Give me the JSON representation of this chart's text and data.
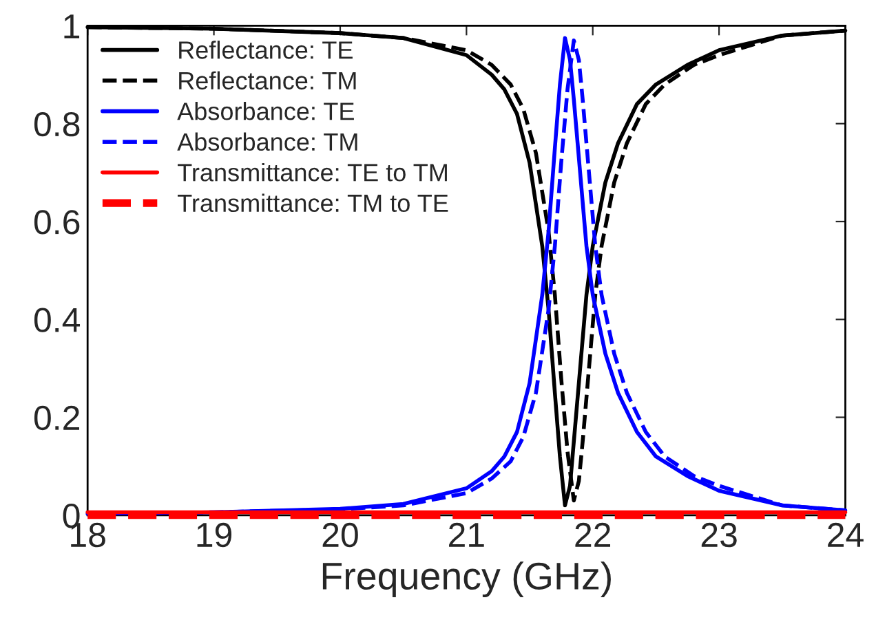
{
  "chart_data": {
    "type": "line",
    "xlabel": "Frequency (GHz)",
    "x": [
      18,
      19,
      20,
      20.5,
      21,
      21.2,
      21.3,
      21.4,
      21.5,
      21.6,
      21.65,
      21.7,
      21.74,
      21.78,
      21.82,
      21.85,
      21.9,
      21.95,
      22.0,
      22.1,
      22.2,
      22.35,
      22.5,
      22.75,
      23,
      23.5,
      24
    ],
    "series": [
      {
        "name": "Reflectance: TE",
        "color": "#000000",
        "line_style": "solid",
        "values": [
          0.997,
          0.994,
          0.985,
          0.975,
          0.94,
          0.9,
          0.87,
          0.82,
          0.72,
          0.55,
          0.42,
          0.25,
          0.12,
          0.02,
          0.06,
          0.15,
          0.3,
          0.45,
          0.55,
          0.68,
          0.76,
          0.84,
          0.88,
          0.92,
          0.95,
          0.98,
          0.99
        ]
      },
      {
        "name": "Reflectance: TM",
        "color": "#000000",
        "line_style": "dashed",
        "x": [
          18,
          19,
          20,
          20.5,
          21,
          21.2,
          21.35,
          21.45,
          21.55,
          21.65,
          21.7,
          21.75,
          21.8,
          21.85,
          21.89,
          21.92,
          21.97,
          22.02,
          22.07,
          22.17,
          22.27,
          22.42,
          22.57,
          22.8,
          23,
          23.5,
          24
        ],
        "values": [
          0.997,
          0.994,
          0.985,
          0.975,
          0.95,
          0.92,
          0.88,
          0.83,
          0.74,
          0.58,
          0.45,
          0.28,
          0.13,
          0.03,
          0.07,
          0.15,
          0.3,
          0.45,
          0.55,
          0.68,
          0.76,
          0.84,
          0.88,
          0.92,
          0.94,
          0.98,
          0.99
        ]
      },
      {
        "name": "Absorbance: TE",
        "color": "#0000ff",
        "line_style": "solid",
        "values": [
          0.003,
          0.006,
          0.013,
          0.023,
          0.055,
          0.09,
          0.12,
          0.17,
          0.27,
          0.45,
          0.58,
          0.75,
          0.88,
          0.975,
          0.93,
          0.85,
          0.7,
          0.55,
          0.45,
          0.33,
          0.25,
          0.17,
          0.12,
          0.08,
          0.05,
          0.02,
          0.01
        ]
      },
      {
        "name": "Absorbance: TM",
        "color": "#0000ff",
        "line_style": "dashed",
        "x": [
          18,
          19,
          20,
          20.5,
          21,
          21.2,
          21.35,
          21.45,
          21.55,
          21.65,
          21.7,
          21.75,
          21.8,
          21.85,
          21.89,
          21.92,
          21.97,
          22.02,
          22.07,
          22.17,
          22.27,
          22.42,
          22.57,
          22.8,
          23,
          23.5,
          24
        ],
        "values": [
          0.003,
          0.006,
          0.012,
          0.02,
          0.045,
          0.075,
          0.11,
          0.16,
          0.25,
          0.42,
          0.55,
          0.72,
          0.87,
          0.97,
          0.93,
          0.85,
          0.7,
          0.55,
          0.45,
          0.33,
          0.25,
          0.17,
          0.12,
          0.08,
          0.06,
          0.02,
          0.01
        ]
      },
      {
        "name": "Transmittance: TE to TM",
        "color": "#ff0000",
        "line_style": "solid",
        "values": [
          0.006,
          0.006,
          0.006,
          0.006,
          0.006,
          0.006,
          0.006,
          0.006,
          0.006,
          0.006,
          0.006,
          0.006,
          0.006,
          0.006,
          0.006,
          0.006,
          0.006,
          0.006,
          0.006,
          0.006,
          0.006,
          0.006,
          0.006,
          0.006,
          0.006,
          0.006,
          0.006
        ]
      },
      {
        "name": "Transmittance: TM to TE",
        "color": "#ff0000",
        "line_style": "dashed",
        "values": [
          0,
          0,
          0,
          0,
          0,
          0,
          0,
          0,
          0,
          0,
          0,
          0,
          0,
          0,
          0,
          0,
          0,
          0,
          0,
          0,
          0,
          0,
          0,
          0,
          0,
          0,
          0
        ]
      }
    ],
    "xlim": [
      18,
      24
    ],
    "xticks": [
      18,
      19,
      20,
      21,
      22,
      23,
      24
    ],
    "ylim": [
      0,
      1
    ],
    "yticks": [
      0,
      0.2,
      0.4,
      0.6,
      0.8,
      1
    ],
    "legend": "top left",
    "grid": false
  }
}
